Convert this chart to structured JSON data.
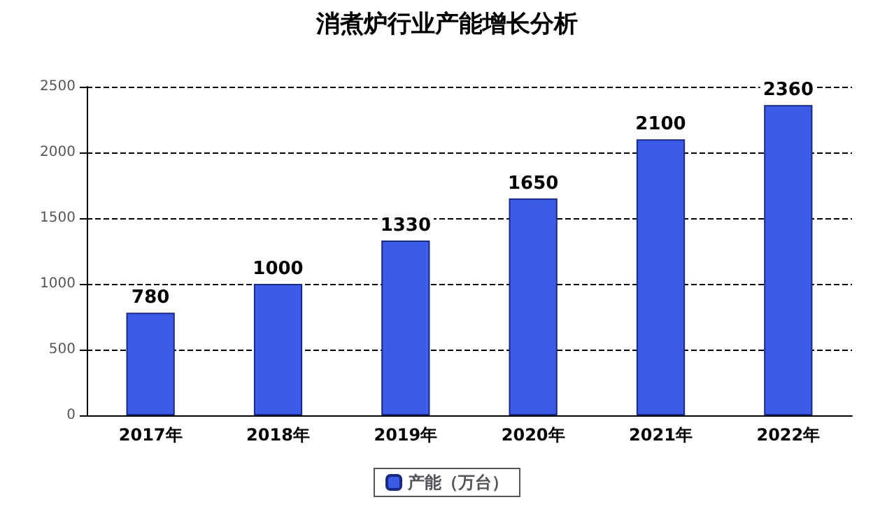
{
  "chart_data": {
    "type": "bar",
    "title": "消煮炉行业产能增长分析",
    "categories": [
      "2017年",
      "2018年",
      "2019年",
      "2020年",
      "2021年",
      "2022年"
    ],
    "series": [
      {
        "name": "产能（万台）",
        "color": "#3b5be8",
        "values": [
          780,
          1000,
          1330,
          1650,
          2100,
          2360
        ]
      }
    ],
    "ylim": [
      0,
      2500
    ],
    "yticks": [
      0,
      500,
      1000,
      1500,
      2000,
      2500
    ],
    "grid": "y",
    "legend": "bottom",
    "data_labels": true
  }
}
